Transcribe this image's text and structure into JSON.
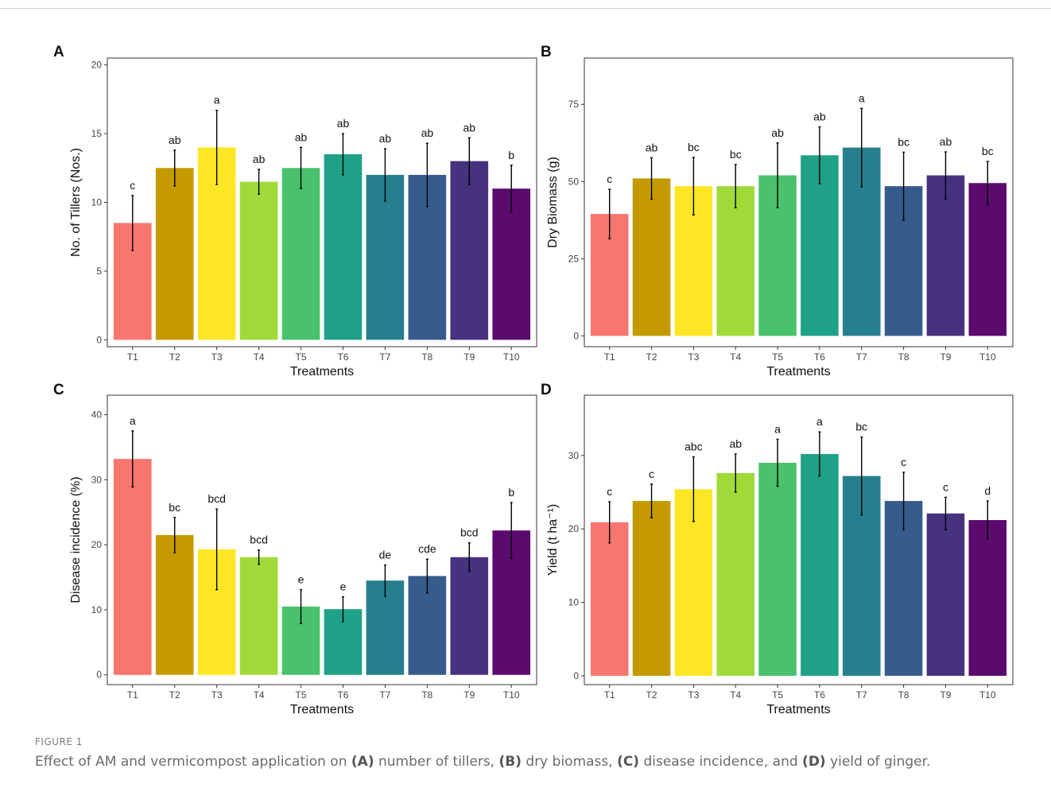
{
  "figure": {
    "caption_label": "FIGURE 1",
    "caption_parts": [
      {
        "text": "Effect of AM and vermicompost application on ",
        "bold": false
      },
      {
        "text": "(A)",
        "bold": true
      },
      {
        "text": " number of tillers, ",
        "bold": false
      },
      {
        "text": "(B)",
        "bold": true
      },
      {
        "text": " dry biomass, ",
        "bold": false
      },
      {
        "text": "(C)",
        "bold": true
      },
      {
        "text": " disease incidence, and ",
        "bold": false
      },
      {
        "text": "(D)",
        "bold": true
      },
      {
        "text": " yield of ginger.",
        "bold": false
      }
    ]
  },
  "colors": [
    "#F8766D",
    "#C49A00",
    "#FDE725",
    "#A0DA39",
    "#4AC16D",
    "#1FA187",
    "#277F8E",
    "#365C8D",
    "#46327E",
    "#5B0A6E"
  ],
  "chart_data": [
    {
      "panel": "A",
      "type": "bar",
      "categories": [
        "T1",
        "T2",
        "T3",
        "T4",
        "T5",
        "T6",
        "T7",
        "T8",
        "T9",
        "T10"
      ],
      "values": [
        8.5,
        12.5,
        14.0,
        11.5,
        12.5,
        13.5,
        12.0,
        12.0,
        13.0,
        11.0
      ],
      "errors": [
        2.0,
        1.3,
        2.7,
        0.9,
        1.5,
        1.5,
        1.9,
        2.3,
        1.7,
        1.7
      ],
      "labels": [
        "c",
        "ab",
        "a",
        "ab",
        "ab",
        "ab",
        "ab",
        "ab",
        "ab",
        "b"
      ],
      "xlabel": "Treatments",
      "ylabel": "No. of Tillers (Nos.)",
      "ylim": [
        -0.5,
        20.5
      ],
      "yticks": [
        0,
        5,
        10,
        15,
        20
      ]
    },
    {
      "panel": "B",
      "type": "bar",
      "categories": [
        "T1",
        "T2",
        "T3",
        "T4",
        "T5",
        "T6",
        "T7",
        "T8",
        "T9",
        "T10"
      ],
      "values": [
        39.5,
        51.0,
        48.5,
        48.5,
        52.0,
        58.5,
        61.0,
        48.5,
        52.0,
        49.5
      ],
      "errors": [
        8.0,
        6.7,
        9.3,
        7.0,
        10.5,
        9.2,
        12.7,
        11.0,
        7.6,
        7.0
      ],
      "labels": [
        "c",
        "ab",
        "bc",
        "bc",
        "ab",
        "ab",
        "a",
        "bc",
        "ab",
        "bc"
      ],
      "xlabel": "Treatments",
      "ylabel": "Dry Biomass (g)",
      "ylim": [
        -3.5,
        90
      ],
      "yticks": [
        0,
        25,
        50,
        75
      ]
    },
    {
      "panel": "C",
      "type": "bar",
      "categories": [
        "T1",
        "T2",
        "T3",
        "T4",
        "T5",
        "T6",
        "T7",
        "T8",
        "T9",
        "T10"
      ],
      "values": [
        33.2,
        21.5,
        19.3,
        18.1,
        10.5,
        10.1,
        14.5,
        15.2,
        18.1,
        22.2
      ],
      "errors": [
        4.3,
        2.7,
        6.2,
        1.1,
        2.6,
        1.9,
        2.4,
        2.6,
        2.2,
        4.3
      ],
      "labels": [
        "a",
        "bc",
        "bcd",
        "bcd",
        "e",
        "e",
        "de",
        "cde",
        "bcd",
        "b"
      ],
      "xlabel": "Treatments",
      "ylabel": "Disease incidence (%)",
      "ylim": [
        -1.5,
        43
      ],
      "yticks": [
        0,
        10,
        20,
        30,
        40
      ]
    },
    {
      "panel": "D",
      "type": "bar",
      "categories": [
        "T1",
        "T2",
        "T3",
        "T4",
        "T5",
        "T6",
        "T7",
        "T8",
        "T9",
        "T10"
      ],
      "values": [
        20.9,
        23.8,
        25.4,
        27.6,
        29.0,
        30.2,
        27.2,
        23.8,
        22.1,
        21.2
      ],
      "errors": [
        2.8,
        2.3,
        4.4,
        2.6,
        3.2,
        3.0,
        5.3,
        3.9,
        2.2,
        2.6
      ],
      "labels": [
        "c",
        "c",
        "abc",
        "ab",
        "a",
        "a",
        "bc",
        "c",
        "c",
        "d"
      ],
      "xlabel": "Treatments",
      "ylabel": "Yield (t ha⁻¹)",
      "ylim": [
        -1.2,
        38.2
      ],
      "yticks": [
        0,
        10,
        20,
        30
      ]
    }
  ]
}
